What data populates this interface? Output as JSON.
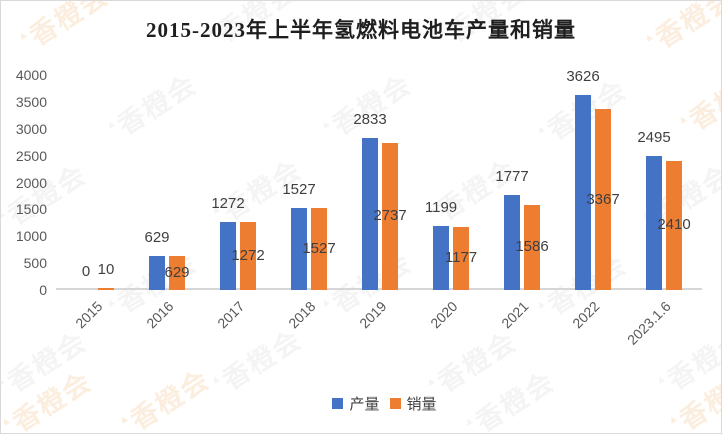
{
  "title": "2015-2023年上半年氢燃料电池车产量和销量",
  "watermark": {
    "text": "香橙会",
    "logo": "▲"
  },
  "colors": {
    "production_blue": "#4472C4",
    "sales_orange": "#ED7D31",
    "axis_line": "#D6D6D6",
    "tick_text": "#595959",
    "data_label_text": "#3F3F3F",
    "title_text": "#1F1F1F"
  },
  "chart_data": {
    "type": "bar",
    "title": "2015-2023年上半年氢燃料电池车产量和销量",
    "categories": [
      "2015",
      "2016",
      "2017",
      "2018",
      "2019",
      "2020",
      "2021",
      "2022",
      "2023.1.6"
    ],
    "series": [
      {
        "name": "产量",
        "color": "#4472C4",
        "values": [
          0,
          629,
          1272,
          1527,
          2833,
          1199,
          1777,
          3626,
          2495
        ]
      },
      {
        "name": "销量",
        "color": "#ED7D31",
        "values": [
          10,
          629,
          1272,
          1527,
          2737,
          1177,
          1586,
          3367,
          2410
        ]
      }
    ],
    "xlabel": "",
    "ylabel": "",
    "ylim": [
      0,
      4000
    ],
    "y_ticks": [
      0,
      500,
      1000,
      1500,
      2000,
      2500,
      3000,
      3500,
      4000
    ],
    "grid": false,
    "data_labels": true,
    "legend_position": "bottom"
  }
}
